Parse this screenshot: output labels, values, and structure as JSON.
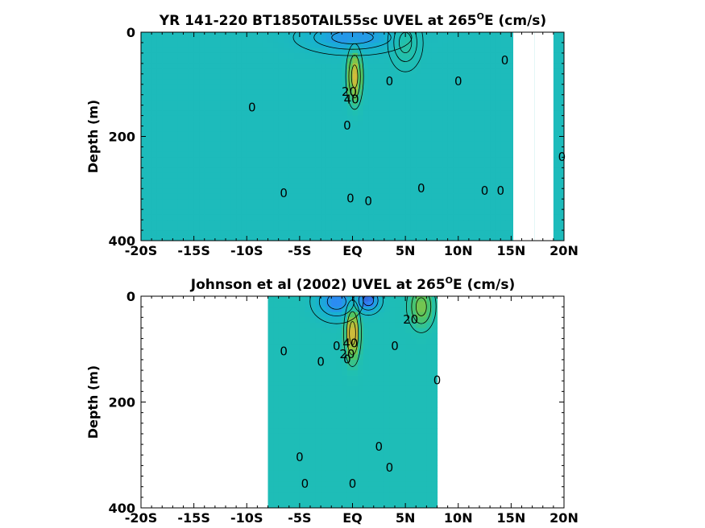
{
  "chart_data": [
    {
      "type": "heatmap",
      "title": "YR 141-220 BT1850TAIL55sc UVEL at 265",
      "title_degree": "O",
      "title_suffix": "E (cm/s)",
      "xlabel": "",
      "ylabel": "Depth (m)",
      "xlim": [
        -20,
        20
      ],
      "ylim": [
        400,
        0
      ],
      "x_ticks": [
        -20,
        -15,
        -10,
        -5,
        0,
        5,
        10,
        15,
        20
      ],
      "x_tick_labels": [
        "-20S",
        "-15S",
        "-10S",
        "-5S",
        "EQ",
        "5N",
        "10N",
        "15N",
        "20N"
      ],
      "y_ticks": [
        0,
        200,
        400
      ],
      "y_tick_labels": [
        "0",
        "200",
        "400"
      ],
      "colormap": [
        "#3e26a8",
        "#2e87f7",
        "#17b1d1",
        "#20c0b0",
        "#54c55e",
        "#a0c43e",
        "#e0b83a",
        "#f9d826"
      ],
      "color_range": [
        -40,
        60
      ],
      "background_value": -2,
      "data_x_range": [
        -20,
        20
      ],
      "features": [
        {
          "kind": "jet",
          "name": "EUC core",
          "x": 0.2,
          "depth": 85,
          "peak": 45,
          "width_deg": 0.6,
          "thickness_m": 45
        },
        {
          "kind": "jet",
          "name": "surface westward",
          "x": 0.0,
          "depth": 10,
          "peak": -20,
          "width_deg": 4,
          "thickness_m": 25
        },
        {
          "kind": "jet",
          "name": "NECC",
          "x": 5.0,
          "depth": 20,
          "peak": 10,
          "width_deg": 1.2,
          "thickness_m": 40
        }
      ],
      "missing_regions": [
        {
          "x_range": [
            15.2,
            17.2
          ],
          "depth_range": [
            0,
            400
          ]
        },
        {
          "x_range": [
            17.2,
            19.0
          ],
          "depth_range": [
            0,
            400
          ]
        }
      ],
      "contour_labels": [
        {
          "text": "0",
          "x": -9.5,
          "depth": 145
        },
        {
          "text": "0",
          "x": -6.5,
          "depth": 310
        },
        {
          "text": "20",
          "x": -0.3,
          "depth": 115
        },
        {
          "text": "40",
          "x": -0.1,
          "depth": 130
        },
        {
          "text": "0",
          "x": -0.5,
          "depth": 180
        },
        {
          "text": "0",
          "x": -0.2,
          "depth": 320
        },
        {
          "text": "0",
          "x": 1.5,
          "depth": 325
        },
        {
          "text": "0",
          "x": 3.5,
          "depth": 95
        },
        {
          "text": "0",
          "x": 6.5,
          "depth": 300
        },
        {
          "text": "0",
          "x": 10.0,
          "depth": 95
        },
        {
          "text": "0",
          "x": 12.5,
          "depth": 305
        },
        {
          "text": "0",
          "x": 14.0,
          "depth": 305
        },
        {
          "text": "0",
          "x": 14.4,
          "depth": 55
        },
        {
          "text": "0",
          "x": 19.8,
          "depth": 240
        }
      ]
    },
    {
      "type": "heatmap",
      "title": "Johnson et al (2002) UVEL at 265",
      "title_degree": "O",
      "title_suffix": "E (cm/s)",
      "xlabel": "",
      "ylabel": "Depth (m)",
      "xlim": [
        -20,
        20
      ],
      "ylim": [
        400,
        0
      ],
      "x_ticks": [
        -20,
        -15,
        -10,
        -5,
        0,
        5,
        10,
        15,
        20
      ],
      "x_tick_labels": [
        "-20S",
        "-15S",
        "-10S",
        "-5S",
        "EQ",
        "5N",
        "10N",
        "15N",
        "20N"
      ],
      "y_ticks": [
        0,
        200,
        400
      ],
      "y_tick_labels": [
        "0",
        "200",
        "400"
      ],
      "colormap": [
        "#3e26a8",
        "#2e87f7",
        "#17b1d1",
        "#20c0b0",
        "#54c55e",
        "#a0c43e",
        "#e0b83a",
        "#f9d826"
      ],
      "color_range": [
        -40,
        60
      ],
      "background_value": 0,
      "data_x_range": [
        -8,
        8
      ],
      "features": [
        {
          "kind": "jet",
          "name": "EUC core",
          "x": 0.0,
          "depth": 70,
          "peak": 50,
          "width_deg": 0.6,
          "thickness_m": 45
        },
        {
          "kind": "jet",
          "name": "surface westward south",
          "x": -1.5,
          "depth": 10,
          "peak": -25,
          "width_deg": 1.8,
          "thickness_m": 30
        },
        {
          "kind": "jet",
          "name": "surface westward north",
          "x": 1.5,
          "depth": 8,
          "peak": -30,
          "width_deg": 1.0,
          "thickness_m": 20
        },
        {
          "kind": "jet",
          "name": "NECC",
          "x": 6.5,
          "depth": 20,
          "peak": 25,
          "width_deg": 1.0,
          "thickness_m": 35
        }
      ],
      "contour_labels": [
        {
          "text": "0",
          "x": -6.5,
          "depth": 105
        },
        {
          "text": "0",
          "x": -3.0,
          "depth": 125
        },
        {
          "text": "0",
          "x": -1.5,
          "depth": 95
        },
        {
          "text": "0",
          "x": -0.5,
          "depth": 120
        },
        {
          "text": "20",
          "x": -0.5,
          "depth": 110
        },
        {
          "text": "40",
          "x": -0.2,
          "depth": 90
        },
        {
          "text": "0",
          "x": 0.0,
          "depth": 355
        },
        {
          "text": "0",
          "x": 2.5,
          "depth": 285
        },
        {
          "text": "0",
          "x": 3.5,
          "depth": 325
        },
        {
          "text": "0",
          "x": 4.0,
          "depth": 95
        },
        {
          "text": "20",
          "x": 5.5,
          "depth": 45
        },
        {
          "text": "0",
          "x": 8.0,
          "depth": 160
        },
        {
          "text": "0",
          "x": -5.0,
          "depth": 305
        },
        {
          "text": "0",
          "x": -4.5,
          "depth": 355
        }
      ]
    }
  ]
}
